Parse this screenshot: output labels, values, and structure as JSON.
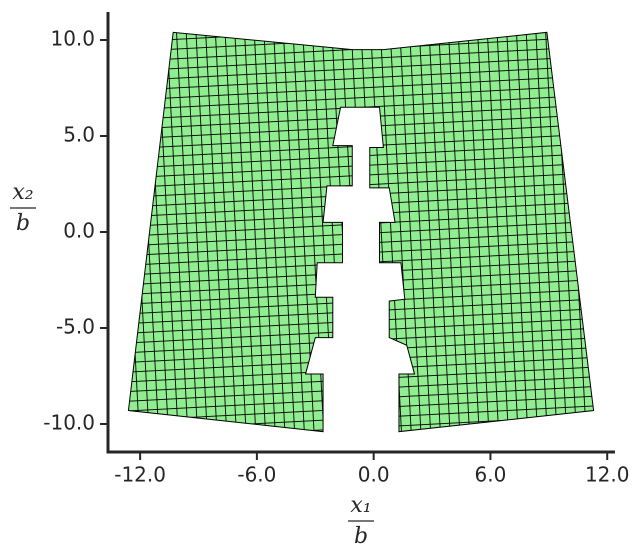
{
  "chart_data": {
    "type": "mesh",
    "color": "#90ee90",
    "edge_color": "#000000",
    "x": [
      -10.3,
      -1.1,
      0.5,
      8.9,
      11.3,
      1.3,
      1.3,
      2.1,
      1.7,
      0.8,
      0.8,
      1.6,
      1.4,
      0.3,
      0.3,
      1.1,
      0.8,
      -0.2,
      -0.2,
      0.5,
      0.3,
      -1.7,
      -2.1,
      -1.1,
      -1.1,
      -2.4,
      -2.6,
      -1.6,
      -1.6,
      -2.9,
      -3.0,
      -2.1,
      -2.1,
      -3.0,
      -3.5,
      -2.6,
      -2.6,
      -12.6
    ],
    "y": [
      10.4,
      9.5,
      9.5,
      10.4,
      -9.3,
      -10.4,
      -7.4,
      -7.4,
      -5.9,
      -5.5,
      -3.6,
      -3.5,
      -1.6,
      -1.6,
      0.5,
      0.5,
      2.3,
      2.3,
      4.4,
      4.4,
      6.5,
      6.5,
      4.5,
      4.5,
      2.4,
      2.4,
      0.5,
      0.5,
      -1.6,
      -1.6,
      -3.4,
      -3.4,
      -5.5,
      -5.5,
      -7.4,
      -7.4,
      -10.4,
      -9.3
    ],
    "xlim": [
      -13.65,
      12.4
    ],
    "ylim": [
      -11.46,
      11.46
    ],
    "xticks": [
      {
        "value": -12,
        "label": "-12.0"
      },
      {
        "value": -6,
        "label": "-6.0"
      },
      {
        "value": 0,
        "label": "0.0"
      },
      {
        "value": 6,
        "label": "6.0"
      },
      {
        "value": 12,
        "label": "12.0"
      }
    ],
    "yticks": [
      {
        "value": -10,
        "label": "-10.0"
      },
      {
        "value": -5,
        "label": "-5.0"
      },
      {
        "value": 0,
        "label": "0.0"
      },
      {
        "value": 5,
        "label": "5.0"
      },
      {
        "value": 10,
        "label": "10.0"
      }
    ],
    "xlabel_numerator": "x₁",
    "xlabel_denominator": "b",
    "ylabel_numerator": "x₂",
    "ylabel_denominator": "b"
  }
}
